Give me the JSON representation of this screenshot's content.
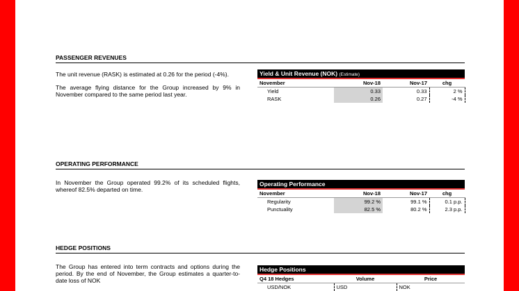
{
  "sections": [
    {
      "title": "PASSENGER REVENUES",
      "paragraphs": [
        "The unit revenue (RASK) is estimated at 0.26 for the period (-4%).",
        "The average flying distance for the Group increased by 9% in November compared to the same period last year."
      ],
      "table": {
        "title": "Yield & Unit Revenue (NOK)",
        "title_note": "(Estimate)",
        "columns": [
          "November",
          "Nov-18",
          "Nov-17",
          "chg"
        ],
        "rows": [
          [
            "Yield",
            "0.33",
            "0.33",
            "2 %"
          ],
          [
            "RASK",
            "0.26",
            "0.27",
            "-4 %"
          ]
        ]
      }
    },
    {
      "title": "OPERATING PERFORMANCE",
      "paragraphs": [
        "In November the Group operated 99.2% of its scheduled flights, whereof 82.5% departed on time."
      ],
      "table": {
        "title": "Operating Performance",
        "columns": [
          "November",
          "Nov-18",
          "Nov-17",
          "chg"
        ],
        "rows": [
          [
            "Regularity",
            "99.2 %",
            "99.1 %",
            "0.1 p.p."
          ],
          [
            "Punctuality",
            "82.5 %",
            "80.2 %",
            "2.3 p.p."
          ]
        ]
      }
    },
    {
      "title": "HEDGE POSITIONS",
      "paragraphs": [
        "The Group has entered into term contracts and options during the period. By the end of November, the Group estimates a quarter-to-date loss of NOK"
      ],
      "table": {
        "title": "Hedge Positions",
        "columns": [
          "Q4 18 Hedges",
          "Volume",
          "Price"
        ],
        "rows": [
          [
            "USD/NOK",
            "USD",
            "NOK"
          ]
        ]
      }
    }
  ]
}
